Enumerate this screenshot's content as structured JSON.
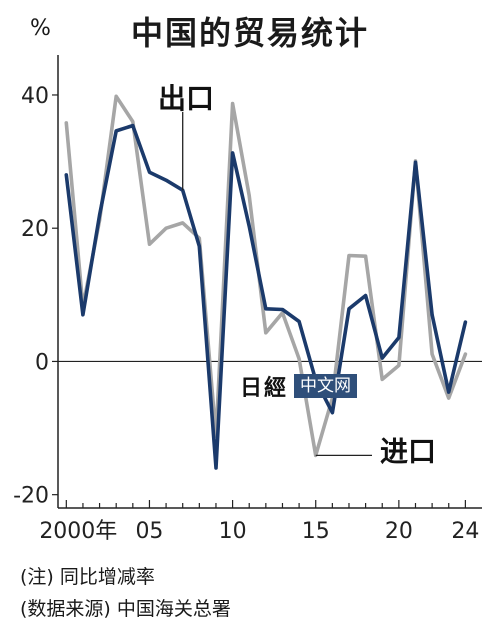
{
  "title": "中国的贸易统计",
  "unit": "%",
  "notes": [
    "(注) 同比增减率",
    "(数据来源) 中国海关总署"
  ],
  "watermark": {
    "logo": "日經",
    "text": "中文网"
  },
  "colors": {
    "export": "#1b3a6b",
    "import": "#a6a6a6",
    "axis": "#222222"
  },
  "chart_data": {
    "type": "line",
    "x": [
      2000,
      2001,
      2002,
      2003,
      2004,
      2005,
      2006,
      2007,
      2008,
      2009,
      2010,
      2011,
      2012,
      2013,
      2014,
      2015,
      2016,
      2017,
      2018,
      2019,
      2020,
      2021,
      2022,
      2023,
      2024
    ],
    "series": [
      {
        "name": "出口",
        "color": "#1b3a6b",
        "values": [
          28,
          7,
          22,
          34.6,
          35.4,
          28.4,
          27.2,
          25.7,
          17.3,
          -16,
          31.3,
          20.3,
          7.9,
          7.8,
          6,
          -2.8,
          -7.7,
          7.9,
          9.9,
          0.5,
          3.6,
          29.9,
          7,
          -4.6,
          5.9
        ]
      },
      {
        "name": "进口",
        "color": "#a6a6a6",
        "values": [
          35.8,
          8.2,
          21.2,
          39.8,
          36,
          17.6,
          20,
          20.8,
          18.5,
          -11.2,
          38.7,
          24.9,
          4.3,
          7.3,
          0.4,
          -14.1,
          -5.5,
          15.9,
          15.8,
          -2.7,
          -0.6,
          30.1,
          1.1,
          -5.5,
          1.1
        ]
      }
    ],
    "annotations": [
      "出口",
      "进口"
    ],
    "xticks": [
      "2000年",
      "05",
      "10",
      "15",
      "20",
      "24"
    ],
    "xtick_values": [
      2000,
      2005,
      2010,
      2015,
      2020,
      2024
    ],
    "yticks": [
      "40",
      "20",
      "0",
      "-20"
    ],
    "ytick_values": [
      40,
      20,
      0,
      -20
    ],
    "xlim": [
      1999.5,
      2025
    ],
    "ylim": [
      -22,
      46
    ],
    "zero_line": true,
    "grid": false,
    "legend": "none"
  }
}
